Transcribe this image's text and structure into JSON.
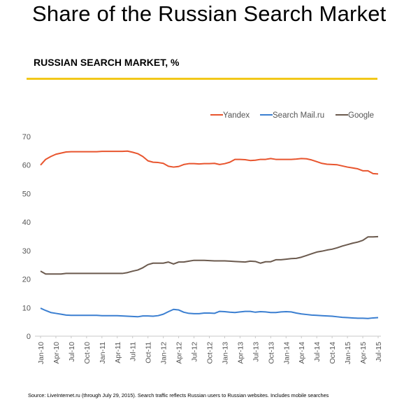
{
  "title": "Share of the Russian Search Market",
  "subtitle": "RUSSIAN SEARCH MARKET, %",
  "source": "Source: LiveInternet.ru (through July 29, 2015). Search traffic reflects Russian users to Russian websites. Includes mobile searches",
  "colors": {
    "rule": "#f2c81a",
    "yandex": "#e8552e",
    "mail": "#3b7fd1",
    "google": "#6b5a4e",
    "grid": "#e4e4e4",
    "axis": "#c8c8c8",
    "tick_text": "#555555"
  },
  "chart_data": {
    "type": "line",
    "x": [
      "Jan-10",
      "Feb-10",
      "Mar-10",
      "Apr-10",
      "May-10",
      "Jun-10",
      "Jul-10",
      "Aug-10",
      "Sep-10",
      "Oct-10",
      "Nov-10",
      "Dec-10",
      "Jan-11",
      "Feb-11",
      "Mar-11",
      "Apr-11",
      "May-11",
      "Jun-11",
      "Jul-11",
      "Aug-11",
      "Sep-11",
      "Oct-11",
      "Nov-11",
      "Dec-11",
      "Jan-12",
      "Feb-12",
      "Mar-12",
      "Apr-12",
      "May-12",
      "Jun-12",
      "Jul-12",
      "Aug-12",
      "Sep-12",
      "Oct-12",
      "Nov-12",
      "Dec-12",
      "Jan-13",
      "Feb-13",
      "Mar-13",
      "Apr-13",
      "May-13",
      "Jun-13",
      "Jul-13",
      "Aug-13",
      "Sep-13",
      "Oct-13",
      "Nov-13",
      "Dec-13",
      "Jan-14",
      "Feb-14",
      "Mar-14",
      "Apr-14",
      "May-14",
      "Jun-14",
      "Jul-14",
      "Aug-14",
      "Sep-14",
      "Oct-14",
      "Nov-14",
      "Dec-14",
      "Jan-15",
      "Feb-15",
      "Mar-15",
      "Apr-15",
      "May-15",
      "Jun-15",
      "Jul-15"
    ],
    "x_tick_labels": [
      "Jan-10",
      "Apr-10",
      "Jul-10",
      "Oct-10",
      "Jan-11",
      "Apr-11",
      "Jul-11",
      "Oct-11",
      "Jan-12",
      "Apr-12",
      "Jul-12",
      "Oct-12",
      "Jan-13",
      "Apr-13",
      "Jul-13",
      "Oct-13",
      "Jan-14",
      "Apr-14",
      "Jul-14",
      "Oct-14",
      "Jan-15",
      "Apr-15",
      "Jul-15"
    ],
    "y_ticks": [
      0,
      10,
      20,
      30,
      40,
      50,
      60,
      70
    ],
    "ylim": [
      0,
      70
    ],
    "grid": false,
    "legend_position": "top-right",
    "series": [
      {
        "name": "Yandex",
        "color_key": "yandex",
        "values": [
          60,
          62,
          63,
          63.8,
          64.2,
          64.6,
          64.7,
          64.7,
          64.7,
          64.7,
          64.7,
          64.7,
          64.8,
          64.8,
          64.8,
          64.8,
          64.8,
          64.9,
          64.5,
          64,
          63,
          61.5,
          61,
          60.9,
          60.6,
          59.6,
          59.3,
          59.5,
          60.2,
          60.5,
          60.5,
          60.4,
          60.5,
          60.5,
          60.6,
          60.2,
          60.5,
          61,
          62,
          62,
          61.9,
          61.6,
          61.7,
          62,
          62,
          62.3,
          62,
          62,
          62,
          62,
          62.1,
          62.3,
          62.2,
          61.8,
          61.2,
          60.6,
          60.3,
          60.2,
          60.1,
          59.7,
          59.3,
          59,
          58.7,
          58,
          58,
          57,
          56.9
        ]
      },
      {
        "name": "Search Mail.ru",
        "color_key": "mail",
        "values": [
          9.8,
          9,
          8.3,
          8,
          7.7,
          7.4,
          7.3,
          7.3,
          7.3,
          7.3,
          7.3,
          7.3,
          7.2,
          7.2,
          7.2,
          7.2,
          7.1,
          7,
          6.9,
          6.8,
          7.1,
          7.1,
          7,
          7.2,
          7.7,
          8.6,
          9.4,
          9.2,
          8.4,
          8,
          7.9,
          7.9,
          8.1,
          8.1,
          8,
          8.7,
          8.6,
          8.4,
          8.3,
          8.5,
          8.7,
          8.7,
          8.4,
          8.6,
          8.5,
          8.3,
          8.3,
          8.5,
          8.6,
          8.5,
          8.1,
          7.8,
          7.6,
          7.4,
          7.3,
          7.2,
          7.1,
          7,
          6.8,
          6.6,
          6.5,
          6.4,
          6.3,
          6.3,
          6.2,
          6.4,
          6.5
        ]
      },
      {
        "name": "Google",
        "color_key": "google",
        "values": [
          22.8,
          21.8,
          21.8,
          21.8,
          21.8,
          22,
          22,
          22,
          22,
          22,
          22,
          22,
          22,
          22,
          22,
          22,
          22,
          22.3,
          22.8,
          23.2,
          24,
          25.1,
          25.6,
          25.6,
          25.6,
          26,
          25.3,
          26,
          26,
          26.3,
          26.6,
          26.6,
          26.6,
          26.5,
          26.4,
          26.4,
          26.4,
          26.3,
          26.2,
          26.1,
          26,
          26.3,
          26.2,
          25.6,
          26.1,
          26.1,
          26.8,
          26.8,
          27,
          27.2,
          27.3,
          27.7,
          28.3,
          28.9,
          29.5,
          29.8,
          30.2,
          30.5,
          31,
          31.6,
          32.1,
          32.6,
          33,
          33.6,
          34.8,
          34.8,
          34.9
        ]
      }
    ]
  }
}
